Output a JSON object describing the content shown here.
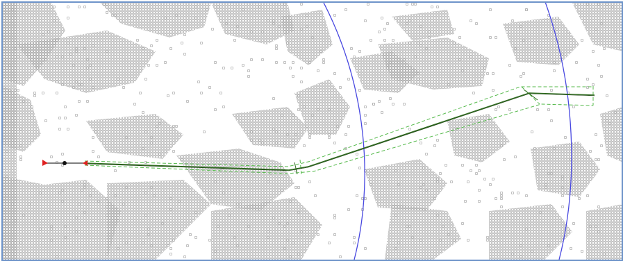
{
  "map": {
    "background_color": "#ffffff",
    "frame_color": "#6d93c9",
    "obstacle_color": "#b4b4b4",
    "boundary_arc_color": "#4848e0",
    "path_line_color": "#2f6b1f",
    "path_line_dark_color": "#1a3f10",
    "corridor_color": "#54b94a",
    "start_marker_color": "#e02020",
    "waypoint_color": "#111111"
  },
  "legend": {}
}
